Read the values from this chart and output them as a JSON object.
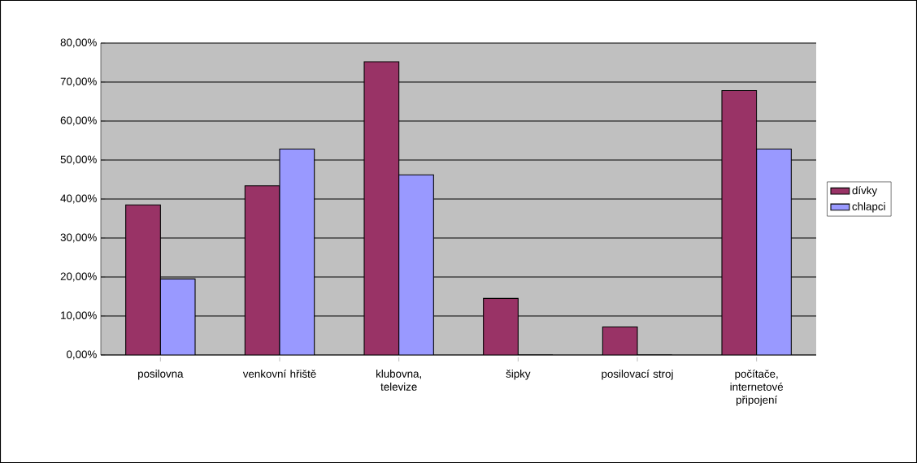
{
  "chart_data": {
    "type": "bar",
    "categories": [
      "posilovna",
      "venkovní hřiště",
      "klubovna, televize",
      "šipky",
      "posilovací stroj",
      "počítače, internetové připojení"
    ],
    "series": [
      {
        "name": "dívky",
        "color": "#993366",
        "values": [
          38.5,
          43.4,
          75.2,
          14.5,
          7.2,
          67.8
        ]
      },
      {
        "name": "chlapci",
        "color": "#9999ff",
        "values": [
          19.5,
          52.8,
          46.2,
          0,
          0,
          52.8
        ]
      }
    ],
    "ylim": [
      0,
      80
    ],
    "yticks": [
      {
        "value": 0,
        "label": "0,00%"
      },
      {
        "value": 10,
        "label": "10,00%"
      },
      {
        "value": 20,
        "label": "20,00%"
      },
      {
        "value": 30,
        "label": "30,00%"
      },
      {
        "value": 40,
        "label": "40,00%"
      },
      {
        "value": 50,
        "label": "50,00%"
      },
      {
        "value": 60,
        "label": "60,00%"
      },
      {
        "value": 70,
        "label": "70,00%"
      },
      {
        "value": 80,
        "label": "80,00%"
      }
    ],
    "grid": "y",
    "legend": "right"
  }
}
